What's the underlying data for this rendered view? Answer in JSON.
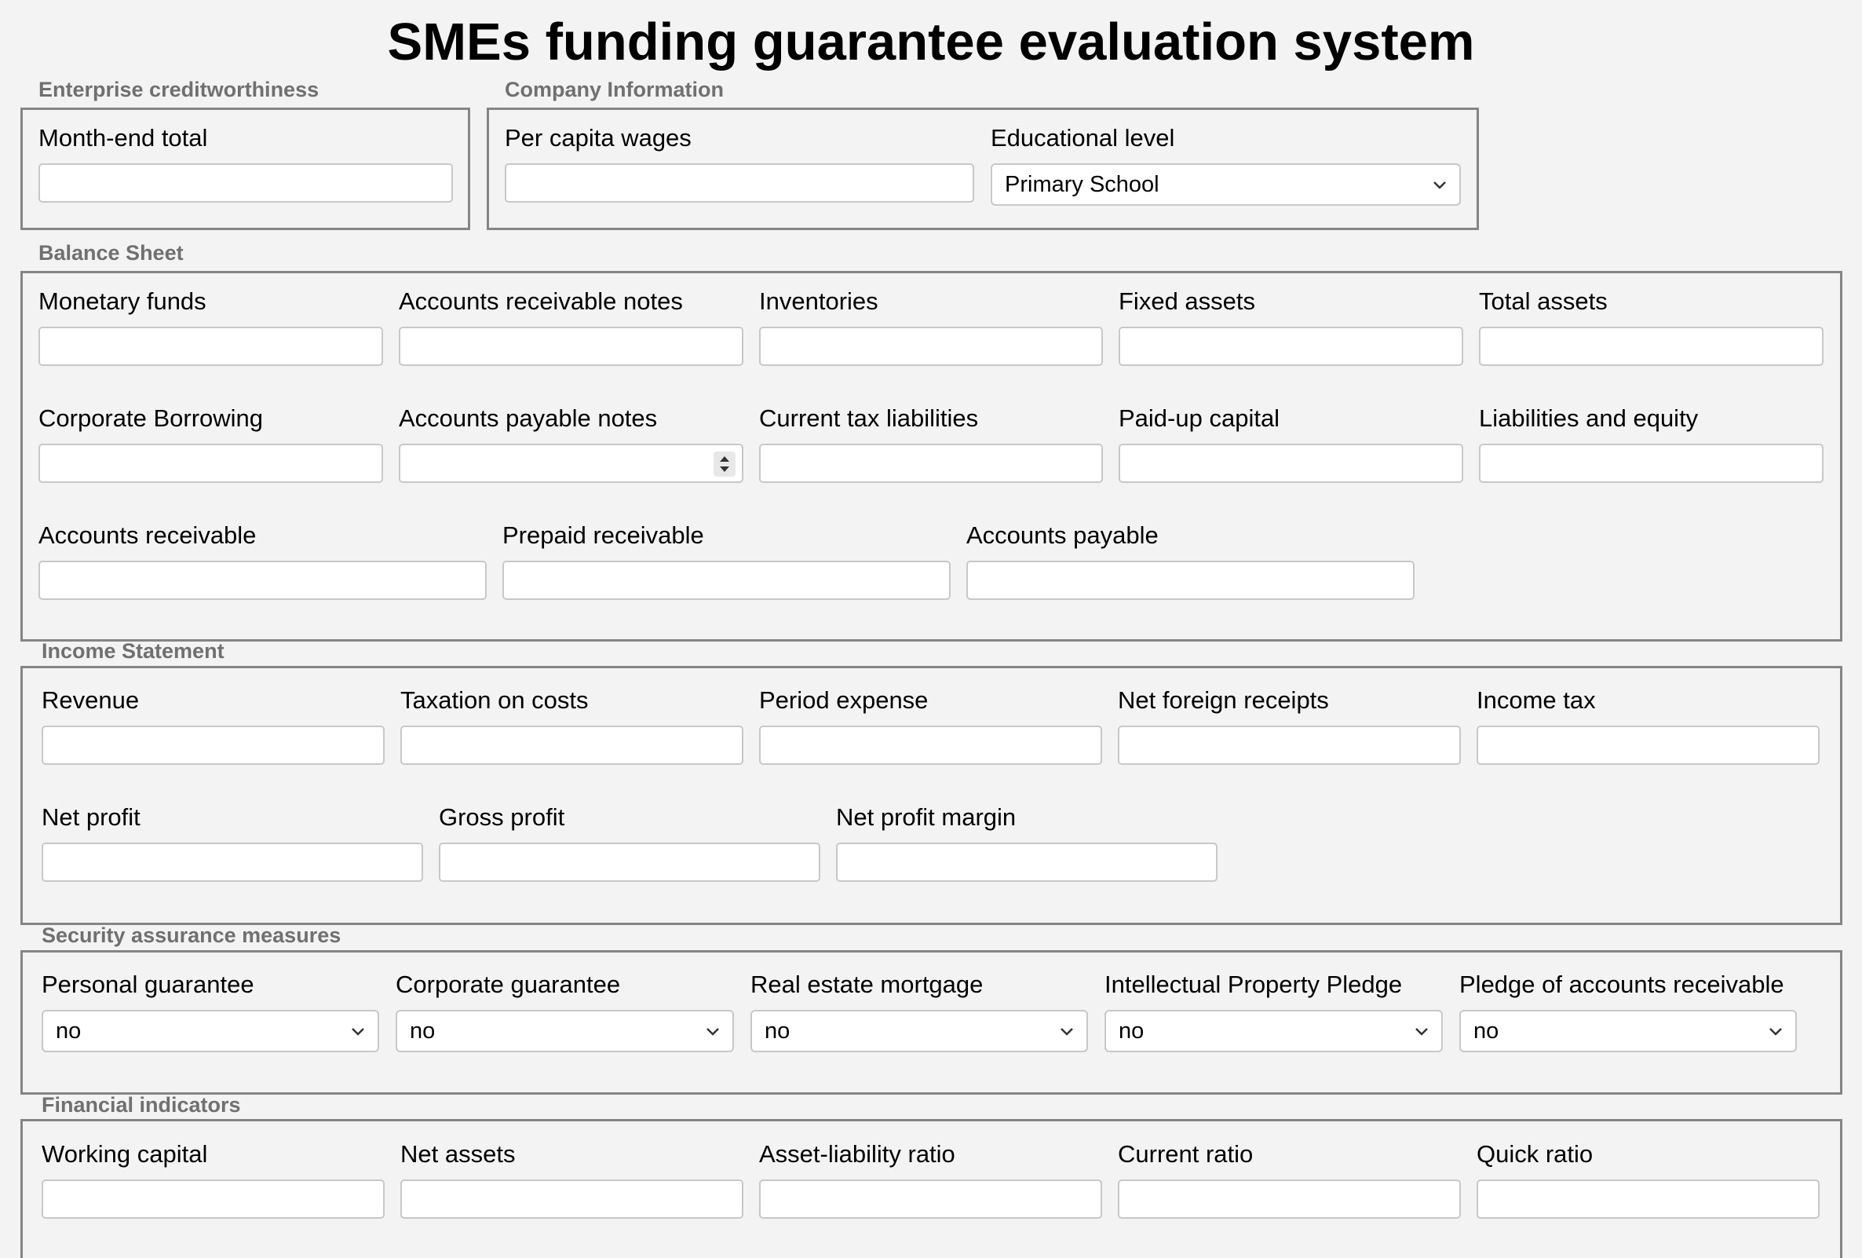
{
  "title": "SMEs funding guarantee evaluation system",
  "sections": {
    "creditworthiness": {
      "legend": "Enterprise creditworthiness",
      "fields": [
        {
          "label": "Month-end total",
          "value": ""
        }
      ]
    },
    "company_info": {
      "legend": "Company Information",
      "fields": [
        {
          "label": "Per capita wages",
          "value": ""
        }
      ],
      "education": {
        "label": "Educational level",
        "selected": "Primary School"
      }
    },
    "balance_sheet": {
      "legend": "Balance Sheet",
      "fields": [
        {
          "label": "Monetary funds",
          "value": ""
        },
        {
          "label": "Accounts receivable notes",
          "value": ""
        },
        {
          "label": "Inventories",
          "value": ""
        },
        {
          "label": "Fixed assets",
          "value": ""
        },
        {
          "label": "Total assets",
          "value": ""
        },
        {
          "label": "Corporate Borrowing",
          "value": ""
        },
        {
          "label": "Accounts payable notes",
          "value": ""
        },
        {
          "label": "Current tax liabilities",
          "value": ""
        },
        {
          "label": "Paid-up capital",
          "value": ""
        },
        {
          "label": "Liabilities and equity",
          "value": ""
        },
        {
          "label": "Accounts receivable",
          "value": ""
        },
        {
          "label": "Prepaid receivable",
          "value": ""
        },
        {
          "label": "Accounts payable",
          "value": ""
        }
      ]
    },
    "income_statement": {
      "legend": "Income Statement",
      "fields": [
        {
          "label": "Revenue",
          "value": ""
        },
        {
          "label": "Taxation on costs",
          "value": ""
        },
        {
          "label": "Period expense",
          "value": ""
        },
        {
          "label": "Net foreign receipts",
          "value": ""
        },
        {
          "label": "Income tax",
          "value": ""
        },
        {
          "label": "Net profit",
          "value": ""
        },
        {
          "label": "Gross profit",
          "value": ""
        },
        {
          "label": "Net profit margin",
          "value": ""
        }
      ]
    },
    "security": {
      "legend": "Security assurance measures",
      "selects": [
        {
          "label": "Personal guarantee",
          "selected": "no"
        },
        {
          "label": "Corporate guarantee",
          "selected": "no"
        },
        {
          "label": "Real estate mortgage",
          "selected": "no"
        },
        {
          "label": "Intellectual Property Pledge",
          "selected": "no"
        },
        {
          "label": "Pledge of accounts receivable",
          "selected": "no"
        }
      ]
    },
    "financial": {
      "legend": "Financial indicators",
      "fields": [
        {
          "label": "Working capital",
          "value": ""
        },
        {
          "label": "Net assets",
          "value": ""
        },
        {
          "label": "Asset-liability ratio",
          "value": ""
        },
        {
          "label": "Current ratio",
          "value": ""
        },
        {
          "label": "Quick ratio",
          "value": ""
        }
      ]
    }
  }
}
